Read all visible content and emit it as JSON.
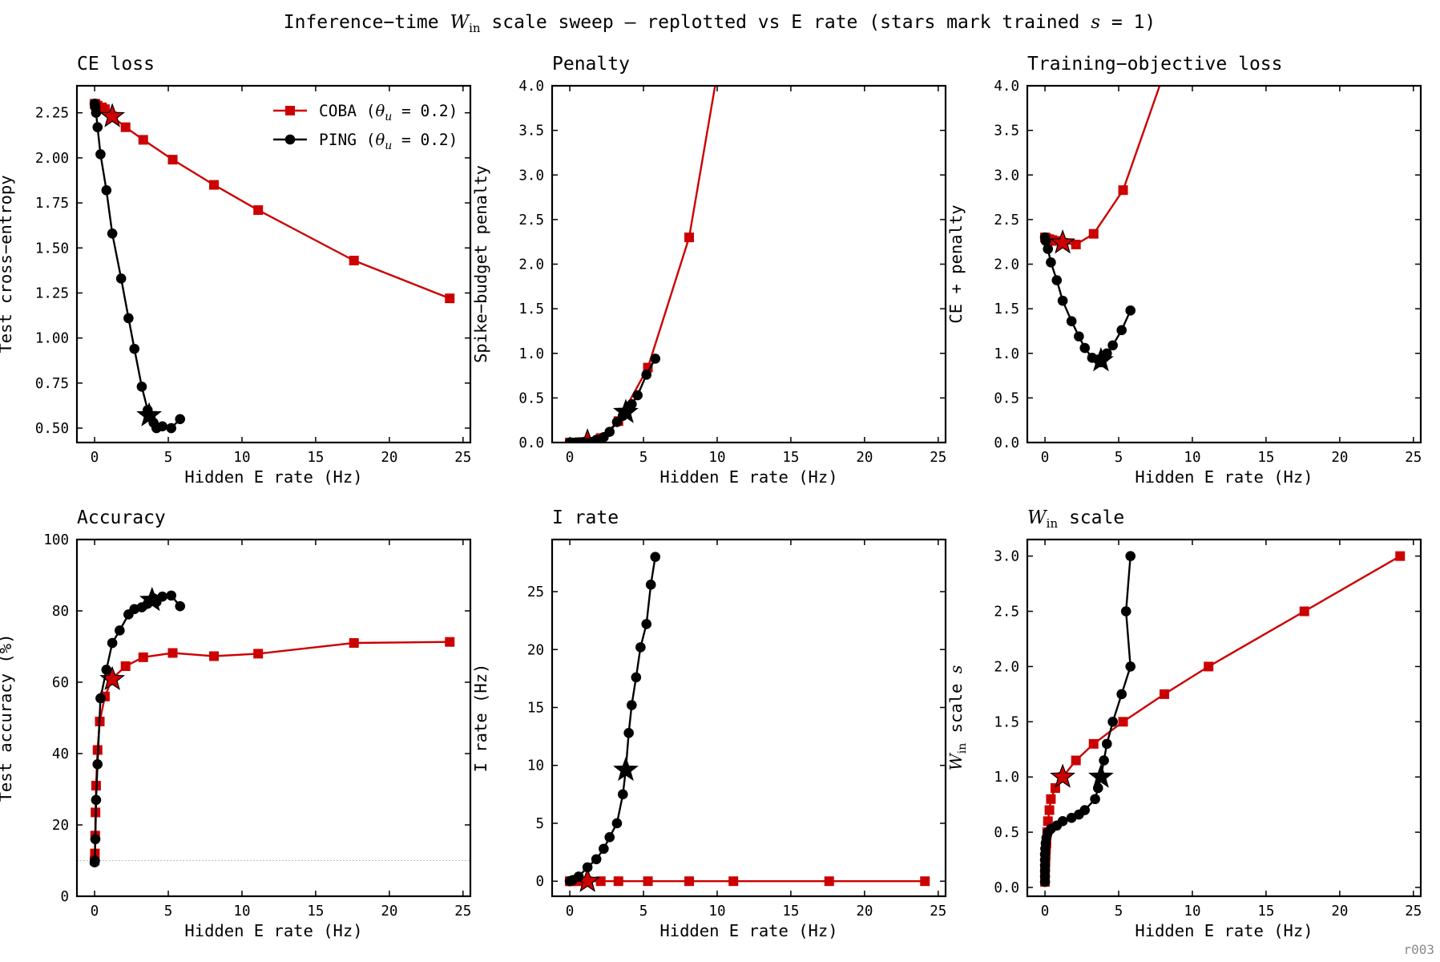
{
  "figure": {
    "suptitle_pre": "Inference−time ",
    "suptitle_sym": "W",
    "suptitle_sub": "in",
    "suptitle_post": " scale sweep — replotted vs E rate (stars mark trained ",
    "suptitle_s": "s",
    "suptitle_tail": " = 1)",
    "corner_label": "r003"
  },
  "colors": {
    "coba": "#cc0000",
    "ping": "#000000",
    "frame": "#000000",
    "chance": "#bbbbbb"
  },
  "legend": [
    {
      "pre": "COBA (",
      "theta": "θ",
      "sub": "u",
      "post": " = 0.2)",
      "marker": "square",
      "color": "#cc0000"
    },
    {
      "pre": "PING (",
      "theta": "θ",
      "sub": "u",
      "post": " = 0.2)",
      "marker": "circle",
      "color": "#000000"
    }
  ],
  "chart_data": [
    {
      "panel": "ce",
      "type": "line",
      "title": "CE loss",
      "xlabel": "Hidden E rate (Hz)",
      "ylabel": "Test cross−entropy",
      "xlim": [
        -1.2,
        25.5
      ],
      "ylim": [
        0.42,
        2.4
      ],
      "xticks": [
        0,
        5,
        10,
        15,
        20,
        25
      ],
      "yticks": [
        0.5,
        0.75,
        1.0,
        1.25,
        1.5,
        1.75,
        2.0,
        2.25
      ],
      "ytick_labels": [
        "0.50",
        "0.75",
        "1.00",
        "1.25",
        "1.50",
        "1.75",
        "2.00",
        "2.25"
      ],
      "legend_position": "top-right",
      "series": [
        {
          "name": "COBA (θu = 0.2)",
          "marker": "square",
          "x": [
            0.0,
            0.02,
            0.05,
            0.1,
            0.2,
            0.35,
            0.5,
            0.7,
            1.2,
            2.1,
            3.3,
            5.3,
            8.1,
            11.1,
            17.6,
            24.1
          ],
          "y": [
            2.3,
            2.3,
            2.3,
            2.29,
            2.29,
            2.28,
            2.28,
            2.27,
            2.23,
            2.17,
            2.1,
            1.99,
            1.85,
            1.71,
            1.43,
            1.22
          ],
          "star": {
            "x": 1.2,
            "y": 2.23
          }
        },
        {
          "name": "PING (θu = 0.2)",
          "marker": "circle",
          "x": [
            0.0,
            0.02,
            0.05,
            0.1,
            0.2,
            0.4,
            0.8,
            1.2,
            1.8,
            2.3,
            2.7,
            3.2,
            3.6,
            3.8,
            4.0,
            4.2,
            4.6,
            5.2,
            5.8
          ],
          "y": [
            2.3,
            2.3,
            2.28,
            2.25,
            2.17,
            2.02,
            1.82,
            1.58,
            1.33,
            1.11,
            0.94,
            0.73,
            0.6,
            0.56,
            0.53,
            0.5,
            0.51,
            0.5,
            0.55
          ],
          "star": {
            "x": 3.7,
            "y": 0.57
          }
        }
      ]
    },
    {
      "panel": "penalty",
      "type": "line",
      "title": "Penalty",
      "xlabel": "Hidden E rate (Hz)",
      "ylabel": "Spike−budget penalty",
      "xlim": [
        -1.2,
        25.5
      ],
      "ylim": [
        0.0,
        4.0
      ],
      "xticks": [
        0,
        5,
        10,
        15,
        20,
        25
      ],
      "yticks": [
        0,
        0.5,
        1.0,
        1.5,
        2.0,
        2.5,
        3.0,
        3.5,
        4.0
      ],
      "ytick_labels": [
        "0.0",
        "0.5",
        "1.0",
        "1.5",
        "2.0",
        "2.5",
        "3.0",
        "3.5",
        "4.0"
      ],
      "series": [
        {
          "name": "COBA",
          "marker": "square",
          "x": [
            0.0,
            0.05,
            0.2,
            0.5,
            0.7,
            1.2,
            2.1,
            3.3,
            5.3,
            8.1,
            11.1
          ],
          "y": [
            0.0,
            0.0,
            0.0,
            0.0,
            0.0,
            0.01,
            0.05,
            0.24,
            0.84,
            2.3,
            5.2
          ],
          "star": {
            "x": 1.2,
            "y": 0.01
          }
        },
        {
          "name": "PING",
          "marker": "circle",
          "x": [
            0.0,
            0.1,
            0.4,
            0.8,
            1.2,
            1.8,
            2.3,
            2.7,
            3.2,
            3.6,
            3.8,
            4.0,
            4.2,
            4.6,
            5.2,
            5.8
          ],
          "y": [
            0.0,
            0.0,
            0.0,
            0.0,
            0.0,
            0.03,
            0.06,
            0.12,
            0.23,
            0.3,
            0.33,
            0.37,
            0.43,
            0.53,
            0.76,
            0.94
          ],
          "star": {
            "x": 3.8,
            "y": 0.34
          }
        }
      ]
    },
    {
      "panel": "objective",
      "type": "line",
      "title": "Training−objective loss",
      "xlabel": "Hidden E rate (Hz)",
      "ylabel": "CE + penalty",
      "xlim": [
        -1.2,
        25.5
      ],
      "ylim": [
        0.0,
        4.0
      ],
      "xticks": [
        0,
        5,
        10,
        15,
        20,
        25
      ],
      "yticks": [
        0,
        0.5,
        1.0,
        1.5,
        2.0,
        2.5,
        3.0,
        3.5,
        4.0
      ],
      "ytick_labels": [
        "0.0",
        "0.5",
        "1.0",
        "1.5",
        "2.0",
        "2.5",
        "3.0",
        "3.5",
        "4.0"
      ],
      "series": [
        {
          "name": "COBA",
          "marker": "square",
          "x": [
            0.0,
            0.1,
            0.3,
            0.5,
            0.7,
            1.2,
            2.1,
            3.3,
            5.3,
            8.1
          ],
          "y": [
            2.3,
            2.29,
            2.28,
            2.27,
            2.26,
            2.24,
            2.22,
            2.34,
            2.83,
            4.15
          ],
          "star": {
            "x": 1.2,
            "y": 2.24
          }
        },
        {
          "name": "PING",
          "marker": "circle",
          "x": [
            0.0,
            0.05,
            0.2,
            0.4,
            0.8,
            1.2,
            1.8,
            2.3,
            2.7,
            3.2,
            3.6,
            3.8,
            4.0,
            4.2,
            4.6,
            5.2,
            5.8
          ],
          "y": [
            2.3,
            2.26,
            2.17,
            2.02,
            1.82,
            1.59,
            1.36,
            1.19,
            1.06,
            0.95,
            0.93,
            0.9,
            0.95,
            1.0,
            1.09,
            1.26,
            1.48
          ],
          "star": {
            "x": 3.8,
            "y": 0.92
          }
        }
      ]
    },
    {
      "panel": "accuracy",
      "type": "line",
      "title": "Accuracy",
      "xlabel": "Hidden E rate (Hz)",
      "ylabel": "Test accuracy (%)",
      "xlim": [
        -1.2,
        25.5
      ],
      "ylim": [
        0,
        100
      ],
      "xticks": [
        0,
        5,
        10,
        15,
        20,
        25
      ],
      "yticks": [
        0,
        20,
        40,
        60,
        80,
        100
      ],
      "ytick_labels": [
        "0",
        "20",
        "40",
        "60",
        "80",
        "100"
      ],
      "chance_line": 10,
      "series": [
        {
          "name": "COBA",
          "marker": "square",
          "x": [
            0.0,
            0.02,
            0.04,
            0.06,
            0.1,
            0.2,
            0.35,
            0.7,
            1.2,
            2.1,
            3.3,
            5.3,
            8.1,
            11.1,
            17.6,
            24.1
          ],
          "y": [
            10.0,
            12.0,
            17.0,
            23.5,
            31.0,
            41.0,
            49.0,
            56.0,
            61.0,
            64.5,
            67.0,
            68.2,
            67.3,
            68.0,
            71.0,
            71.3
          ],
          "star": {
            "x": 1.2,
            "y": 60.8
          }
        },
        {
          "name": "PING",
          "marker": "circle",
          "x": [
            0.0,
            0.02,
            0.05,
            0.1,
            0.2,
            0.4,
            0.8,
            1.2,
            1.7,
            2.3,
            2.7,
            3.2,
            3.6,
            3.8,
            4.0,
            4.2,
            4.6,
            5.2,
            5.8
          ],
          "y": [
            9.5,
            10.0,
            16.0,
            27.0,
            37.0,
            55.5,
            63.5,
            71.0,
            74.5,
            79.0,
            80.5,
            81.0,
            82.0,
            83.0,
            83.5,
            82.5,
            84.0,
            84.3,
            81.3
          ],
          "star": {
            "x": 3.9,
            "y": 83.0
          }
        }
      ]
    },
    {
      "panel": "irate",
      "type": "line",
      "title": "I rate",
      "xlabel": "Hidden E rate (Hz)",
      "ylabel": "I rate (Hz)",
      "xlim": [
        -1.2,
        25.5
      ],
      "ylim": [
        -1.3,
        29.5
      ],
      "xticks": [
        0,
        5,
        10,
        15,
        20,
        25
      ],
      "yticks": [
        0,
        5,
        10,
        15,
        20,
        25
      ],
      "ytick_labels": [
        "0",
        "5",
        "10",
        "15",
        "20",
        "25"
      ],
      "series": [
        {
          "name": "COBA",
          "marker": "square",
          "x": [
            0.0,
            0.1,
            0.5,
            1.2,
            2.1,
            3.3,
            5.3,
            8.1,
            11.1,
            17.6,
            24.1
          ],
          "y": [
            0,
            0,
            0,
            0,
            0,
            0,
            0,
            0,
            0,
            0,
            0
          ],
          "star": {
            "x": 1.2,
            "y": 0.0
          }
        },
        {
          "name": "PING",
          "marker": "circle",
          "x": [
            0.0,
            0.2,
            0.6,
            1.2,
            1.8,
            2.3,
            2.7,
            3.2,
            3.6,
            3.8,
            4.0,
            4.2,
            4.5,
            4.8,
            5.2,
            5.5,
            5.8
          ],
          "y": [
            0.0,
            0.1,
            0.4,
            1.2,
            1.9,
            2.8,
            3.8,
            5.0,
            7.5,
            9.6,
            12.8,
            15.2,
            17.6,
            20.2,
            22.2,
            25.6,
            28.0
          ],
          "star": {
            "x": 3.8,
            "y": 9.6
          }
        }
      ]
    },
    {
      "panel": "scale",
      "type": "line",
      "title_sym": "W",
      "title_sub": "in",
      "title_post": " scale",
      "xlabel": "Hidden E rate (Hz)",
      "ylabel_sym": "W",
      "ylabel_sub": "in",
      "ylabel_post": " scale ",
      "ylabel_s": "s",
      "xlim": [
        -1.2,
        25.5
      ],
      "ylim": [
        -0.08,
        3.15
      ],
      "xticks": [
        0,
        5,
        10,
        15,
        20,
        25
      ],
      "yticks": [
        0,
        0.5,
        1.0,
        1.5,
        2.0,
        2.5,
        3.0
      ],
      "ytick_labels": [
        "0.0",
        "0.5",
        "1.0",
        "1.5",
        "2.0",
        "2.5",
        "3.0"
      ],
      "series": [
        {
          "name": "COBA",
          "marker": "square",
          "x": [
            0.0,
            0.0,
            0.0,
            0.02,
            0.03,
            0.05,
            0.07,
            0.1,
            0.15,
            0.2,
            0.3,
            0.4,
            0.7,
            1.2,
            2.1,
            3.3,
            5.3,
            8.1,
            11.1,
            17.6,
            24.1
          ],
          "y": [
            0.05,
            0.1,
            0.15,
            0.2,
            0.25,
            0.3,
            0.35,
            0.4,
            0.5,
            0.6,
            0.7,
            0.8,
            0.9,
            1.0,
            1.15,
            1.3,
            1.5,
            1.75,
            2.0,
            2.5,
            3.0
          ],
          "star": {
            "x": 1.2,
            "y": 1.0
          }
        },
        {
          "name": "PING",
          "marker": "circle",
          "x": [
            0.0,
            0.0,
            0.0,
            0.0,
            0.0,
            0.0,
            0.02,
            0.05,
            0.1,
            0.2,
            0.4,
            0.8,
            1.2,
            1.8,
            2.3,
            2.7,
            3.4,
            3.6,
            3.8,
            4.0,
            4.2,
            4.6,
            5.2,
            5.8
          ],
          "y": [
            0.05,
            0.1,
            0.15,
            0.2,
            0.25,
            0.3,
            0.35,
            0.4,
            0.45,
            0.5,
            0.53,
            0.56,
            0.6,
            0.63,
            0.66,
            0.7,
            0.8,
            0.9,
            1.0,
            1.15,
            1.3,
            1.5,
            1.75,
            2.0
          ],
          "extra": {
            "x": [
              5.5,
              5.8
            ],
            "y": [
              2.5,
              3.0
            ]
          },
          "star": {
            "x": 3.8,
            "y": 1.0
          }
        }
      ]
    }
  ]
}
